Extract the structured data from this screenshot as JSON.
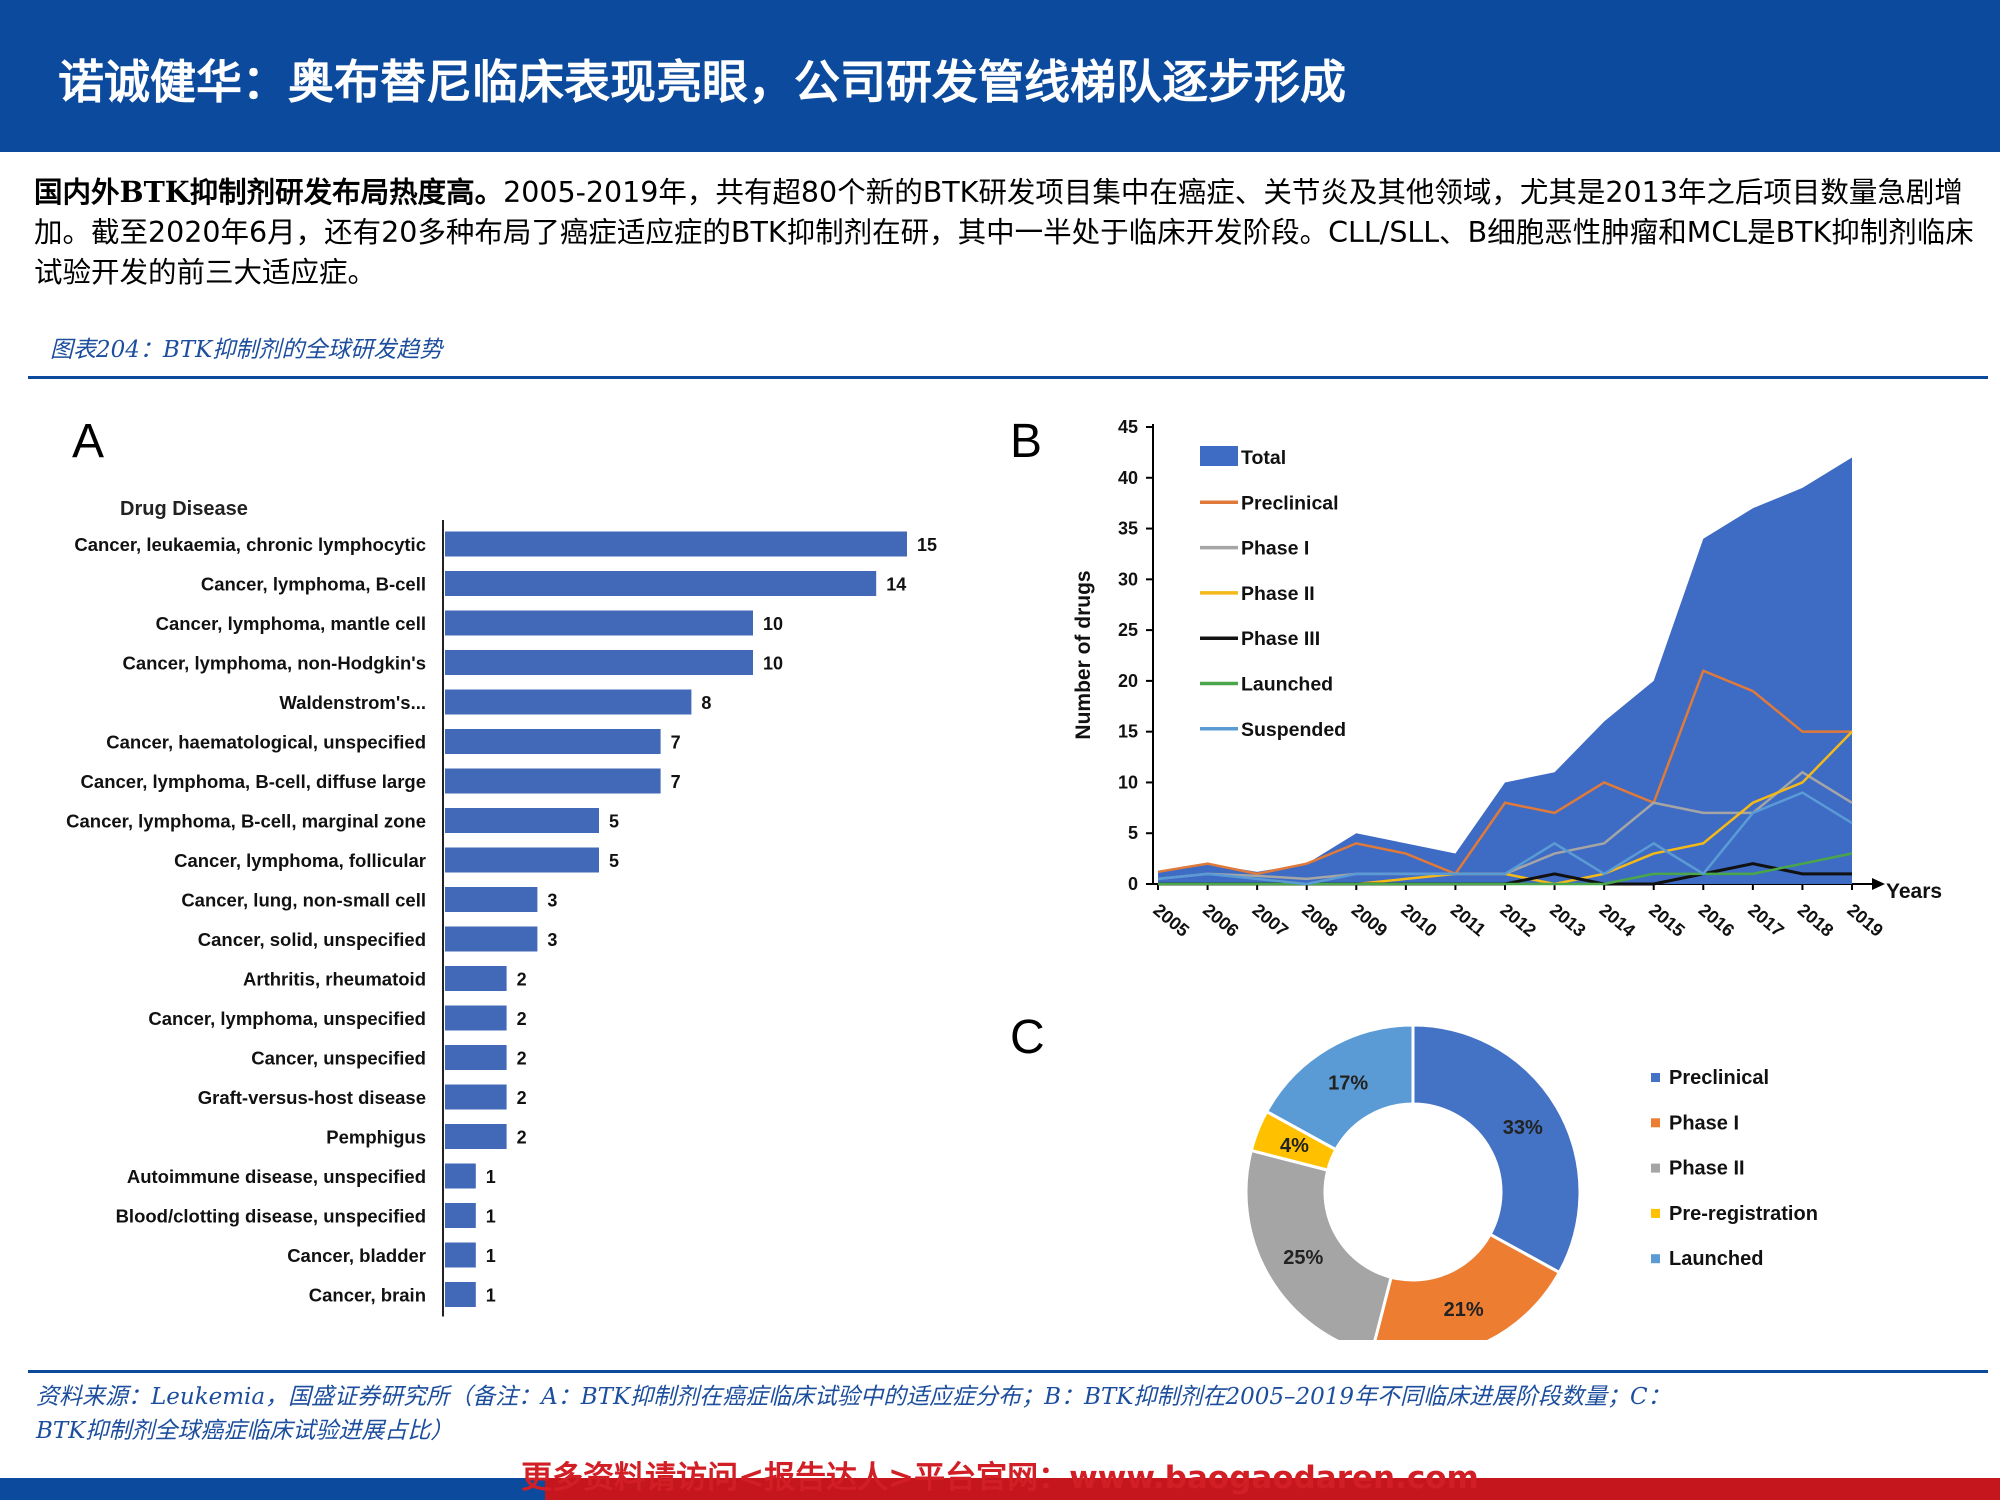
{
  "header": {
    "title": "诺诚健华：奥布替尼临床表现亮眼，公司研发管线梯队逐步形成"
  },
  "intro": {
    "lead": "国内外BTK抑制剂研发布局热度高。",
    "body": "2005-2019年，共有超80个新的BTK研发项目集中在癌症、关节炎及其他领域，尤其是2013年之后项目数量急剧增加。截至2020年6月，还有20多种布局了癌症适应症的BTK抑制剂在研，其中一半处于临床开发阶段。CLL/SLL、B细胞恶性肿瘤和MCL是BTK抑制剂临床试验开发的前三大适应症。"
  },
  "figure": {
    "caption": "图表204：BTK抑制剂的全球研发趋势"
  },
  "panels": {
    "a": "A",
    "b": "B",
    "c": "C"
  },
  "colors": {
    "brand_blue": "#0b4a9c",
    "bar_blue": "#4169b8",
    "total_area": "#3e6bc4",
    "preclinical": "#e07a3a",
    "phase1": "#a5a5a5",
    "phase2": "#f4b918",
    "phase3": "#111111",
    "launched": "#4aa64a",
    "suspended": "#5b9bd5",
    "donut_preclinical": "#4472c4",
    "donut_phase1": "#ed7d31",
    "donut_phase2": "#a5a5a5",
    "donut_prereg": "#ffc000",
    "donut_launched": "#5b9bd5",
    "footer_red": "#c4161c"
  },
  "chart_data": [
    {
      "id": "A",
      "type": "bar",
      "orientation": "horizontal",
      "title": "Drug Disease",
      "categories": [
        "Cancer, leukaemia, chronic lymphocytic",
        "Cancer, lymphoma, B-cell",
        "Cancer, lymphoma, mantle cell",
        "Cancer, lymphoma, non-Hodgkin's",
        "Waldenstrom's...",
        "Cancer, haematological, unspecified",
        "Cancer, lymphoma, B-cell, diffuse large",
        "Cancer, lymphoma, B-cell, marginal zone",
        "Cancer, lymphoma, follicular",
        "Cancer, lung, non-small cell",
        "Cancer, solid, unspecified",
        "Arthritis, rheumatoid",
        "Cancer, lymphoma, unspecified",
        "Cancer, unspecified",
        "Graft-versus-host disease",
        "Pemphigus",
        "Autoimmune disease, unspecified",
        "Blood/clotting disease, unspecified",
        "Cancer, bladder",
        "Cancer, brain"
      ],
      "values": [
        15,
        14,
        10,
        10,
        8,
        7,
        7,
        5,
        5,
        3,
        3,
        2,
        2,
        2,
        2,
        2,
        1,
        1,
        1,
        1
      ],
      "xlim": [
        0,
        15
      ],
      "data_labels": true
    },
    {
      "id": "B",
      "type": "area",
      "ylabel": "Number of drugs",
      "xlabel": "Years",
      "x": [
        "2005",
        "2006",
        "2007",
        "2008",
        "2009",
        "2010",
        "2011",
        "2012",
        "2013",
        "2014",
        "2015",
        "2016",
        "2017",
        "2018",
        "2019"
      ],
      "ylim": [
        0,
        45
      ],
      "yticks": [
        0,
        5,
        10,
        15,
        20,
        25,
        30,
        35,
        40,
        45
      ],
      "legend_position": "top-left",
      "series": [
        {
          "name": "Total",
          "kind": "area",
          "values": [
            1.2,
            2,
            1.2,
            2,
            5,
            4,
            3,
            10,
            11,
            16,
            20,
            34,
            37,
            39,
            42
          ]
        },
        {
          "name": "Preclinical",
          "kind": "line",
          "values": [
            1.2,
            2,
            1,
            2,
            4,
            3,
            1,
            8,
            7,
            10,
            8,
            21,
            19,
            15,
            15
          ]
        },
        {
          "name": "Phase I",
          "kind": "line",
          "values": [
            0.5,
            1,
            0.8,
            0.5,
            1,
            1,
            1,
            1,
            3,
            4,
            8,
            7,
            7,
            11,
            8
          ]
        },
        {
          "name": "Phase II",
          "kind": "line",
          "values": [
            0,
            0,
            0,
            0,
            0,
            0.5,
            1,
            1,
            0,
            1,
            3,
            4,
            8,
            10,
            15
          ]
        },
        {
          "name": "Phase III",
          "kind": "line",
          "values": [
            0,
            0,
            0,
            0,
            0,
            0,
            0,
            0,
            1,
            0,
            0,
            1,
            2,
            1,
            1
          ]
        },
        {
          "name": "Launched",
          "kind": "line",
          "values": [
            0,
            0,
            0,
            0,
            0,
            0,
            0,
            0,
            0,
            0,
            1,
            1,
            1,
            2,
            3
          ]
        },
        {
          "name": "Suspended",
          "kind": "line",
          "values": [
            0.5,
            1,
            0.5,
            0,
            1,
            1,
            1,
            1,
            4,
            1,
            4,
            1,
            7,
            9,
            6
          ]
        }
      ]
    },
    {
      "id": "C",
      "type": "pie",
      "donut": true,
      "legend_position": "right",
      "categories": [
        "Preclinical",
        "Phase I",
        "Phase II",
        "Pre-registration",
        "Launched"
      ],
      "values": [
        33,
        21,
        25,
        4,
        17
      ],
      "labels": [
        "33%",
        "21%",
        "25%",
        "4%",
        "17%"
      ]
    }
  ],
  "source": {
    "line1": "资料来源：Leukemia，国盛证券研究所（备注：A：BTK抑制剂在癌症临床试验中的适应症分布；B：BTK抑制剂在2005–2019年不同临床进展阶段数量；C：",
    "line2": "BTK抑制剂全球癌症临床试验进展占比）"
  },
  "footer": {
    "link_text": "更多资料请访问<报告达人>平台官网：www.baogaodaren.com"
  }
}
